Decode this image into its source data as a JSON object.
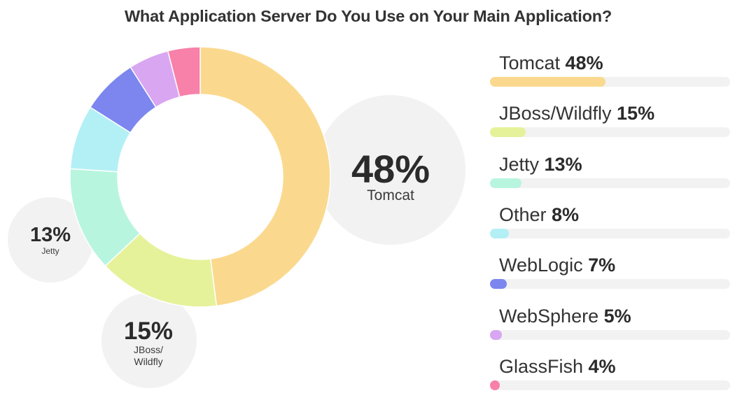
{
  "chart_data": {
    "type": "pie",
    "title": "What Application Server Do You Use on Your Main Application?",
    "categories": [
      "Tomcat",
      "JBoss/Wildfly",
      "Jetty",
      "Other",
      "WebLogic",
      "WebSphere",
      "GlassFish"
    ],
    "values": [
      48,
      15,
      13,
      8,
      7,
      5,
      4
    ],
    "value_labels": [
      "48%",
      "15%",
      "13%",
      "8%",
      "7%",
      "5%",
      "4%"
    ],
    "unit": "%",
    "colors": [
      "#FAD98F",
      "#E6F29A",
      "#B8F5DF",
      "#B3F0F5",
      "#7C86EE",
      "#D9A6F2",
      "#F781A8"
    ],
    "legend_placement": "right",
    "callouts": [
      {
        "value": "48%",
        "label": "Tomcat"
      },
      {
        "value": "15%",
        "label": "JBoss/ Wildfly"
      },
      {
        "value": "13%",
        "label": "Jetty"
      }
    ]
  }
}
